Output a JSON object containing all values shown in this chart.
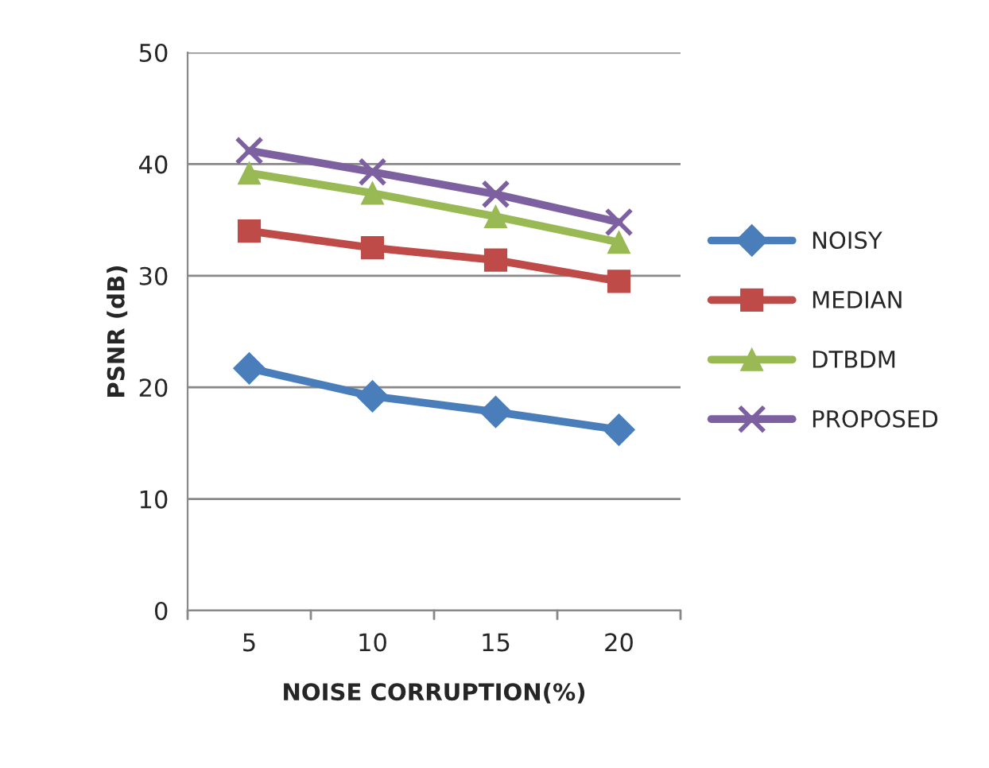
{
  "chart_data": {
    "type": "line",
    "xlabel": "NOISE CORRUPTION(%)",
    "ylabel": "PSNR (dB)",
    "categories": [
      "5",
      "10",
      "15",
      "20"
    ],
    "series": [
      {
        "name": "NOISY",
        "color": "#4a7ebb",
        "marker": "diamond",
        "values": [
          21.7,
          19.2,
          17.8,
          16.2
        ]
      },
      {
        "name": "MEDIAN",
        "color": "#be4b48",
        "marker": "square",
        "values": [
          34.0,
          32.5,
          31.4,
          29.5
        ]
      },
      {
        "name": "DTBDM",
        "color": "#98b954",
        "marker": "triangle",
        "values": [
          39.2,
          37.4,
          35.3,
          33.0
        ]
      },
      {
        "name": "PROPOSED",
        "color": "#7d60a0",
        "marker": "cross",
        "values": [
          41.2,
          39.3,
          37.3,
          34.8
        ]
      }
    ],
    "ylim": [
      0,
      50
    ],
    "yticks": [
      0,
      10,
      20,
      30,
      40,
      50
    ],
    "grid": "y",
    "legend": "right"
  }
}
